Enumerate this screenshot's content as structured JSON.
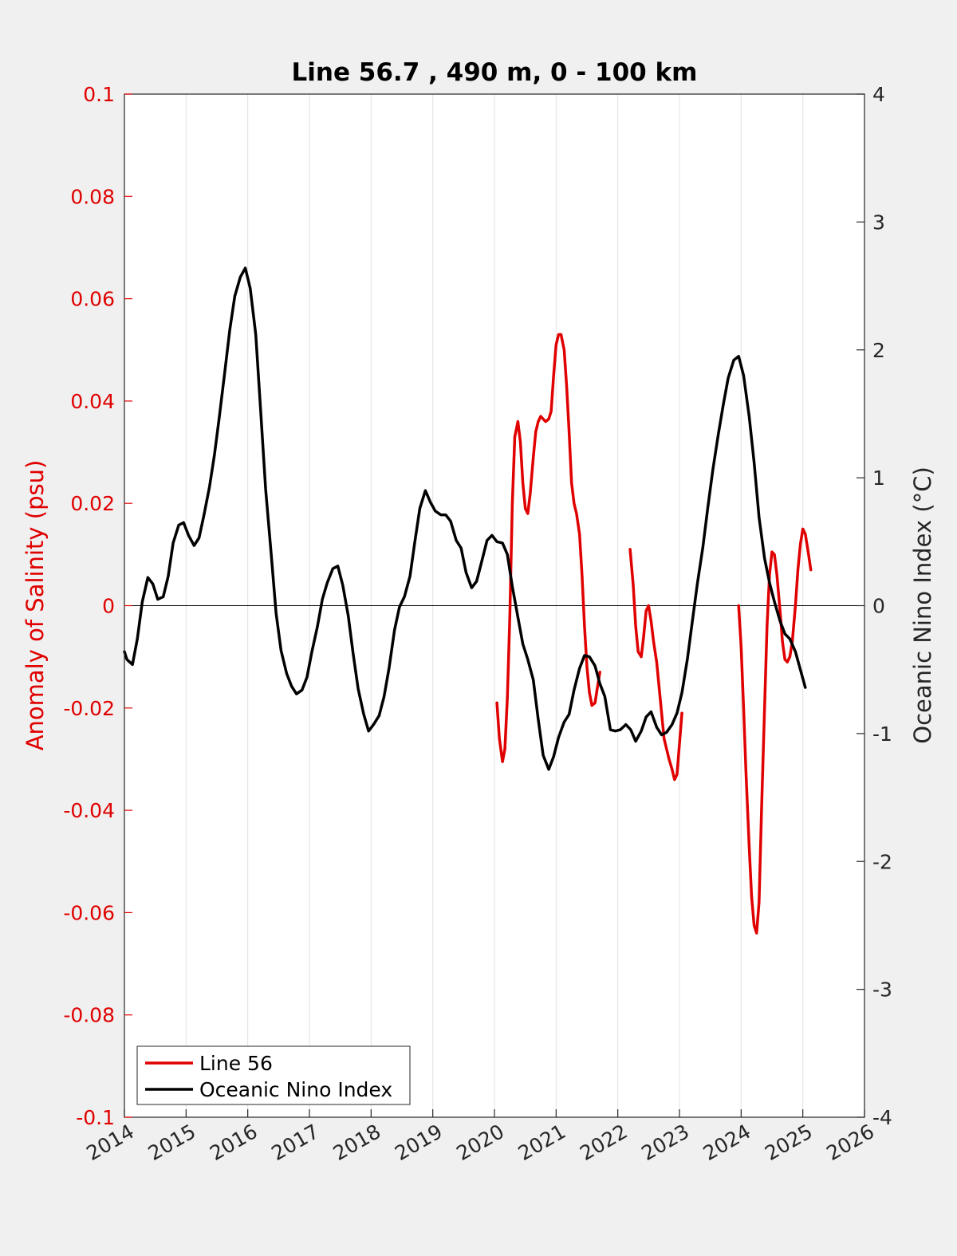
{
  "chart_data": {
    "type": "line",
    "title": "Line 56.7 , 490 m, 0 - 100 km",
    "ylabel_left": "Anomaly of Salinity (psu)",
    "ylabel_right": "Oceanic Nino Index (°C)",
    "xlabel": "",
    "xlim": [
      2014,
      2026
    ],
    "ylim_left": [
      -0.1,
      0.1
    ],
    "ylim_right": [
      -4,
      4
    ],
    "grid": "vertical gridlines at each year",
    "legend_position": "bottom-left",
    "x_tick_labels": [
      "2014",
      "2015",
      "2016",
      "2017",
      "2018",
      "2019",
      "2020",
      "2021",
      "2022",
      "2023",
      "2024",
      "2025",
      "2026"
    ],
    "y_left_tick_labels": [
      "0.1",
      "0.08",
      "0.06",
      "0.04",
      "0.02",
      "0",
      "-0.02",
      "-0.04",
      "-0.06",
      "-0.08",
      "-0.1"
    ],
    "y_right_tick_labels": [
      "4",
      "3",
      "2",
      "1",
      "0",
      "-1",
      "-2",
      "-3",
      "-4"
    ],
    "colors": {
      "line56": "#e00000",
      "oni": "#000000",
      "left_axis": "#e00000",
      "right_axis": "#262626"
    },
    "series": [
      {
        "name": "Line 56",
        "axis": "left",
        "segments": [
          [
            [
              2020.04,
              -0.019
            ],
            [
              2020.08,
              -0.026
            ],
            [
              2020.13,
              -0.0305
            ],
            [
              2020.17,
              -0.028
            ],
            [
              2020.21,
              -0.018
            ],
            [
              2020.25,
              -0.002
            ],
            [
              2020.29,
              0.02
            ],
            [
              2020.33,
              0.033
            ],
            [
              2020.38,
              0.036
            ],
            [
              2020.42,
              0.032
            ],
            [
              2020.46,
              0.024
            ],
            [
              2020.5,
              0.019
            ],
            [
              2020.54,
              0.018
            ],
            [
              2020.58,
              0.022
            ],
            [
              2020.63,
              0.029
            ],
            [
              2020.67,
              0.034
            ],
            [
              2020.71,
              0.036
            ],
            [
              2020.75,
              0.037
            ],
            [
              2020.79,
              0.0365
            ],
            [
              2020.83,
              0.036
            ],
            [
              2020.88,
              0.0365
            ],
            [
              2020.92,
              0.038
            ],
            [
              2020.96,
              0.045
            ],
            [
              2021.0,
              0.051
            ],
            [
              2021.04,
              0.053
            ],
            [
              2021.08,
              0.053
            ],
            [
              2021.13,
              0.05
            ],
            [
              2021.17,
              0.043
            ],
            [
              2021.21,
              0.034
            ],
            [
              2021.25,
              0.024
            ],
            [
              2021.29,
              0.02
            ],
            [
              2021.33,
              0.018
            ],
            [
              2021.38,
              0.014
            ],
            [
              2021.42,
              0.006
            ],
            [
              2021.46,
              -0.004
            ],
            [
              2021.5,
              -0.012
            ],
            [
              2021.54,
              -0.017
            ],
            [
              2021.58,
              -0.0195
            ],
            [
              2021.63,
              -0.019
            ],
            [
              2021.67,
              -0.016
            ],
            [
              2021.71,
              -0.013
            ]
          ],
          [
            [
              2022.2,
              0.011
            ],
            [
              2022.25,
              0.004
            ],
            [
              2022.29,
              -0.004
            ],
            [
              2022.33,
              -0.009
            ],
            [
              2022.38,
              -0.01
            ],
            [
              2022.42,
              -0.006
            ],
            [
              2022.46,
              -0.001
            ],
            [
              2022.5,
              0.0
            ],
            [
              2022.54,
              -0.003
            ],
            [
              2022.58,
              -0.007
            ],
            [
              2022.63,
              -0.011
            ],
            [
              2022.67,
              -0.016
            ],
            [
              2022.71,
              -0.021
            ],
            [
              2022.75,
              -0.026
            ],
            [
              2022.79,
              -0.028
            ],
            [
              2022.83,
              -0.03
            ],
            [
              2022.88,
              -0.032
            ],
            [
              2022.92,
              -0.034
            ],
            [
              2022.96,
              -0.033
            ],
            [
              2023.0,
              -0.027
            ],
            [
              2023.04,
              -0.021
            ]
          ],
          [
            [
              2023.96,
              0.0
            ],
            [
              2024.0,
              -0.008
            ],
            [
              2024.04,
              -0.02
            ],
            [
              2024.08,
              -0.033
            ],
            [
              2024.13,
              -0.047
            ],
            [
              2024.17,
              -0.057
            ],
            [
              2024.21,
              -0.0625
            ],
            [
              2024.25,
              -0.064
            ],
            [
              2024.29,
              -0.058
            ],
            [
              2024.33,
              -0.04
            ],
            [
              2024.38,
              -0.02
            ],
            [
              2024.42,
              -0.004
            ],
            [
              2024.46,
              0.006
            ],
            [
              2024.5,
              0.0105
            ],
            [
              2024.54,
              0.01
            ],
            [
              2024.58,
              0.006
            ],
            [
              2024.63,
              -0.001
            ],
            [
              2024.67,
              -0.007
            ],
            [
              2024.71,
              -0.0105
            ],
            [
              2024.75,
              -0.011
            ],
            [
              2024.79,
              -0.01
            ],
            [
              2024.83,
              -0.007
            ],
            [
              2024.88,
              0.0
            ],
            [
              2024.92,
              0.007
            ],
            [
              2024.96,
              0.012
            ],
            [
              2025.0,
              0.015
            ],
            [
              2025.04,
              0.014
            ],
            [
              2025.08,
              0.011
            ],
            [
              2025.13,
              0.007
            ]
          ]
        ]
      },
      {
        "name": "Oceanic Nino Index",
        "axis": "right",
        "segments": [
          [
            [
              2014.0,
              -0.36
            ],
            [
              2014.04,
              -0.42
            ],
            [
              2014.13,
              -0.46
            ],
            [
              2014.21,
              -0.26
            ],
            [
              2014.29,
              0.03
            ],
            [
              2014.38,
              0.22
            ],
            [
              2014.46,
              0.17
            ],
            [
              2014.54,
              0.05
            ],
            [
              2014.63,
              0.07
            ],
            [
              2014.71,
              0.23
            ],
            [
              2014.79,
              0.49
            ],
            [
              2014.88,
              0.63
            ],
            [
              2014.96,
              0.65
            ],
            [
              2015.04,
              0.55
            ],
            [
              2015.13,
              0.47
            ],
            [
              2015.21,
              0.53
            ],
            [
              2015.29,
              0.71
            ],
            [
              2015.38,
              0.93
            ],
            [
              2015.46,
              1.18
            ],
            [
              2015.54,
              1.48
            ],
            [
              2015.63,
              1.84
            ],
            [
              2015.71,
              2.16
            ],
            [
              2015.79,
              2.42
            ],
            [
              2015.88,
              2.57
            ],
            [
              2015.96,
              2.64
            ],
            [
              2016.04,
              2.48
            ],
            [
              2016.13,
              2.12
            ],
            [
              2016.21,
              1.52
            ],
            [
              2016.29,
              0.91
            ],
            [
              2016.38,
              0.4
            ],
            [
              2016.46,
              -0.06
            ],
            [
              2016.54,
              -0.35
            ],
            [
              2016.63,
              -0.53
            ],
            [
              2016.71,
              -0.63
            ],
            [
              2016.79,
              -0.69
            ],
            [
              2016.88,
              -0.66
            ],
            [
              2016.96,
              -0.56
            ],
            [
              2017.04,
              -0.36
            ],
            [
              2017.13,
              -0.16
            ],
            [
              2017.21,
              0.05
            ],
            [
              2017.29,
              0.18
            ],
            [
              2017.38,
              0.29
            ],
            [
              2017.46,
              0.31
            ],
            [
              2017.54,
              0.16
            ],
            [
              2017.63,
              -0.08
            ],
            [
              2017.71,
              -0.38
            ],
            [
              2017.79,
              -0.65
            ],
            [
              2017.88,
              -0.85
            ],
            [
              2017.96,
              -0.98
            ],
            [
              2018.04,
              -0.93
            ],
            [
              2018.13,
              -0.86
            ],
            [
              2018.21,
              -0.71
            ],
            [
              2018.29,
              -0.49
            ],
            [
              2018.38,
              -0.19
            ],
            [
              2018.46,
              -0.01
            ],
            [
              2018.54,
              0.07
            ],
            [
              2018.63,
              0.23
            ],
            [
              2018.71,
              0.5
            ],
            [
              2018.79,
              0.76
            ],
            [
              2018.88,
              0.9
            ],
            [
              2018.96,
              0.81
            ],
            [
              2019.04,
              0.74
            ],
            [
              2019.13,
              0.71
            ],
            [
              2019.21,
              0.71
            ],
            [
              2019.29,
              0.66
            ],
            [
              2019.38,
              0.51
            ],
            [
              2019.46,
              0.45
            ],
            [
              2019.54,
              0.26
            ],
            [
              2019.63,
              0.14
            ],
            [
              2019.71,
              0.19
            ],
            [
              2019.79,
              0.34
            ],
            [
              2019.88,
              0.51
            ],
            [
              2019.96,
              0.55
            ],
            [
              2020.04,
              0.5
            ],
            [
              2020.13,
              0.49
            ],
            [
              2020.21,
              0.4
            ],
            [
              2020.29,
              0.15
            ],
            [
              2020.38,
              -0.09
            ],
            [
              2020.46,
              -0.3
            ],
            [
              2020.54,
              -0.42
            ],
            [
              2020.63,
              -0.58
            ],
            [
              2020.71,
              -0.89
            ],
            [
              2020.79,
              -1.17
            ],
            [
              2020.88,
              -1.28
            ],
            [
              2020.96,
              -1.18
            ],
            [
              2021.04,
              -1.03
            ],
            [
              2021.13,
              -0.91
            ],
            [
              2021.21,
              -0.85
            ],
            [
              2021.29,
              -0.66
            ],
            [
              2021.38,
              -0.49
            ],
            [
              2021.46,
              -0.39
            ],
            [
              2021.54,
              -0.4
            ],
            [
              2021.63,
              -0.47
            ],
            [
              2021.71,
              -0.61
            ],
            [
              2021.79,
              -0.71
            ],
            [
              2021.88,
              -0.97
            ],
            [
              2021.96,
              -0.98
            ],
            [
              2022.04,
              -0.97
            ],
            [
              2022.13,
              -0.93
            ],
            [
              2022.21,
              -0.97
            ],
            [
              2022.29,
              -1.06
            ],
            [
              2022.38,
              -0.98
            ],
            [
              2022.46,
              -0.87
            ],
            [
              2022.54,
              -0.83
            ],
            [
              2022.63,
              -0.95
            ],
            [
              2022.71,
              -1.01
            ],
            [
              2022.79,
              -0.99
            ],
            [
              2022.88,
              -0.93
            ],
            [
              2022.96,
              -0.84
            ],
            [
              2023.04,
              -0.68
            ],
            [
              2023.13,
              -0.41
            ],
            [
              2023.21,
              -0.12
            ],
            [
              2023.29,
              0.17
            ],
            [
              2023.38,
              0.46
            ],
            [
              2023.46,
              0.77
            ],
            [
              2023.54,
              1.06
            ],
            [
              2023.63,
              1.34
            ],
            [
              2023.71,
              1.57
            ],
            [
              2023.79,
              1.78
            ],
            [
              2023.88,
              1.92
            ],
            [
              2023.96,
              1.95
            ],
            [
              2024.04,
              1.8
            ],
            [
              2024.13,
              1.48
            ],
            [
              2024.21,
              1.12
            ],
            [
              2024.29,
              0.69
            ],
            [
              2024.38,
              0.37
            ],
            [
              2024.46,
              0.18
            ],
            [
              2024.54,
              0.03
            ],
            [
              2024.63,
              -0.12
            ],
            [
              2024.71,
              -0.22
            ],
            [
              2024.79,
              -0.26
            ],
            [
              2024.88,
              -0.36
            ],
            [
              2024.96,
              -0.5
            ],
            [
              2025.04,
              -0.64
            ]
          ]
        ]
      }
    ],
    "legend": [
      "Line 56",
      "Oceanic Nino Index"
    ]
  }
}
